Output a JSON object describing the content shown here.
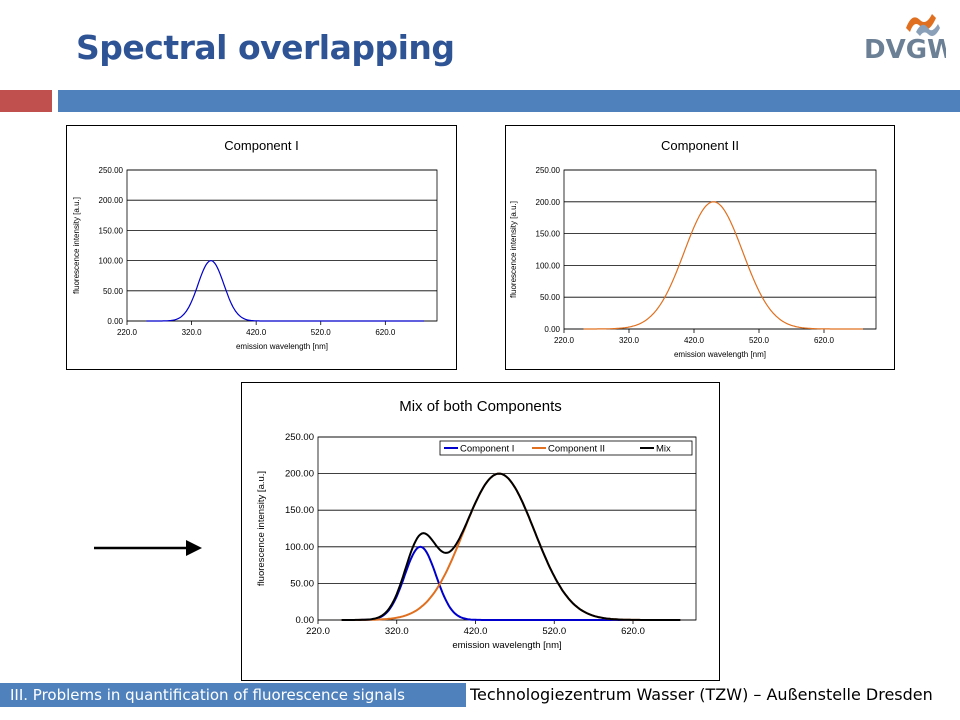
{
  "slide": {
    "title": "Spectral overlapping",
    "logo_text": "DVGW",
    "footer_left": "III. Problems in quantification of fluorescence signals",
    "footer_right": "Technologiezentrum Wasser (TZW) – Außenstelle Dresden"
  },
  "colors": {
    "title": "#2f5496",
    "accent_red": "#c0504d",
    "accent_blue": "#4f81bd",
    "component1": "#0000cc",
    "component2": "#e07020",
    "mix": "#000000"
  },
  "chart_data": [
    {
      "type": "line",
      "title": "Component I",
      "xlabel": "emission wavelength [nm]",
      "ylabel": "fluorescence intensity [a.u.]",
      "xlim": [
        220,
        700
      ],
      "ylim": [
        0,
        250
      ],
      "xticks": [
        "220.0",
        "320.0",
        "420.0",
        "520.0",
        "620.0"
      ],
      "yticks": [
        "0.00",
        "50.00",
        "100.00",
        "150.00",
        "200.00",
        "250.00"
      ],
      "grid": true,
      "legend": false,
      "series": [
        {
          "name": "Component I",
          "color": "#0000cc",
          "peak_x": 350,
          "peak_y": 100,
          "sigma": 20
        }
      ]
    },
    {
      "type": "line",
      "title": "Component II",
      "xlabel": "emission wavelength [nm]",
      "ylabel": "fluorescence intensity [a.u.]",
      "xlim": [
        220,
        700
      ],
      "ylim": [
        0,
        250
      ],
      "xticks": [
        "220.0",
        "320.0",
        "420.0",
        "520.0",
        "620.0"
      ],
      "yticks": [
        "0.00",
        "50.00",
        "100.00",
        "150.00",
        "200.00",
        "250.00"
      ],
      "grid": true,
      "legend": false,
      "series": [
        {
          "name": "Component II",
          "color": "#e07020",
          "peak_x": 450,
          "peak_y": 200,
          "sigma": 45
        }
      ]
    },
    {
      "type": "line",
      "title": "Mix of both Components",
      "xlabel": "emission wavelength [nm]",
      "ylabel": "fluorescence intensity [a.u.]",
      "xlim": [
        220,
        700
      ],
      "ylim": [
        0,
        250
      ],
      "xticks": [
        "220.0",
        "320.0",
        "420.0",
        "520.0",
        "620.0"
      ],
      "yticks": [
        "0.00",
        "50.00",
        "100.00",
        "150.00",
        "200.00",
        "250.00"
      ],
      "grid": true,
      "legend": "top-right",
      "series": [
        {
          "name": "Component I",
          "color": "#0000cc",
          "peak_x": 350,
          "peak_y": 100,
          "sigma": 20
        },
        {
          "name": "Component II",
          "color": "#e07020",
          "peak_x": 450,
          "peak_y": 200,
          "sigma": 45
        },
        {
          "name": "Mix",
          "color": "#000000",
          "sum_of": [
            0,
            1
          ]
        }
      ]
    }
  ]
}
